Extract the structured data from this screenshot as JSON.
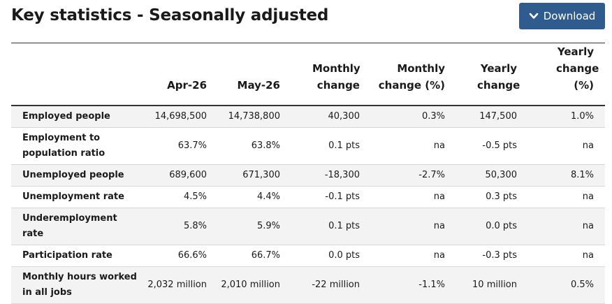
{
  "title": "Key statistics - Seasonally adjusted",
  "download": {
    "label": "Download",
    "icon": "chevron-down-icon",
    "color": "#2e5c8e"
  },
  "table": {
    "headers": [
      "",
      "Apr-26",
      "May-26",
      "Monthly change",
      "Monthly change (%)",
      "Yearly change",
      "Yearly change (%)"
    ],
    "rows": [
      {
        "label": "Employed people",
        "cells": [
          "14,698,500",
          "14,738,800",
          "40,300",
          "0.3%",
          "147,500",
          "1.0%"
        ]
      },
      {
        "label": "Employment to population ratio",
        "cells": [
          "63.7%",
          "63.8%",
          "0.1 pts",
          "na",
          "-0.5 pts",
          "na"
        ]
      },
      {
        "label": "Unemployed people",
        "cells": [
          "689,600",
          "671,300",
          "-18,300",
          "-2.7%",
          "50,300",
          "8.1%"
        ]
      },
      {
        "label": "Unemployment rate",
        "cells": [
          "4.5%",
          "4.4%",
          "-0.1 pts",
          "na",
          "0.3 pts",
          "na"
        ]
      },
      {
        "label": "Underemployment rate",
        "cells": [
          "5.8%",
          "5.9%",
          "0.1 pts",
          "na",
          "0.0 pts",
          "na"
        ]
      },
      {
        "label": "Participation rate",
        "cells": [
          "66.6%",
          "66.7%",
          "0.0 pts",
          "na",
          "-0.3 pts",
          "na"
        ]
      },
      {
        "label": "Monthly hours worked in all jobs",
        "cells": [
          "2,032 million",
          "2,010 million",
          "-22 million",
          "-1.1%",
          "10 million",
          "0.5%"
        ]
      }
    ],
    "row_shading": "#f3f3f3"
  }
}
